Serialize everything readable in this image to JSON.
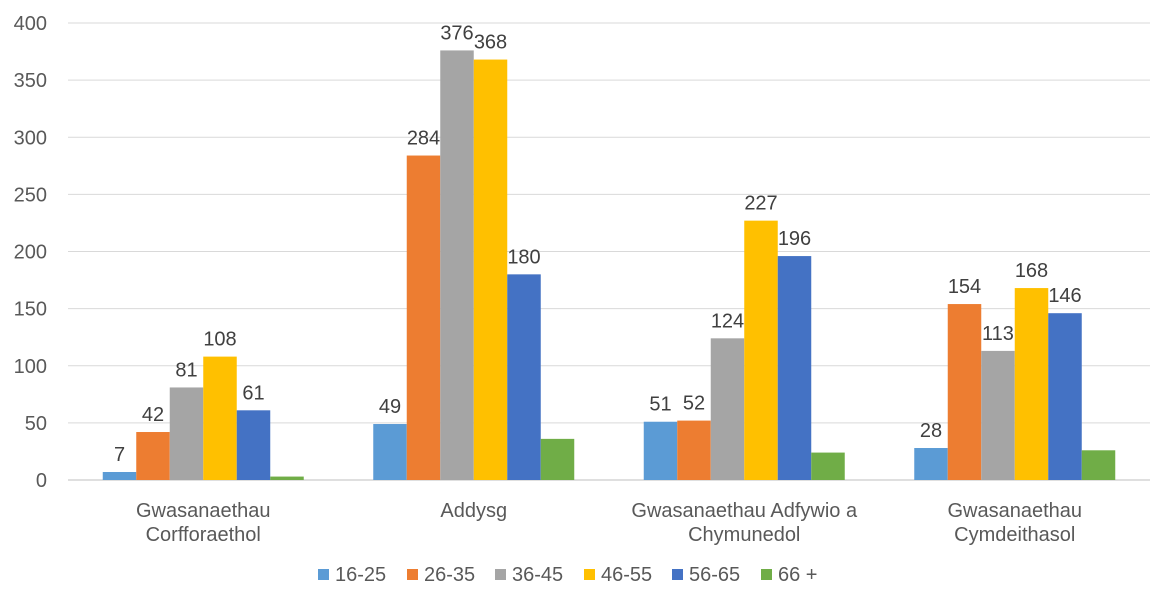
{
  "chart_data": {
    "type": "bar",
    "categories": [
      [
        "Gwasanaethau",
        "Corfforaethol"
      ],
      [
        "Addysg"
      ],
      [
        "Gwasanaethau Adfywio a",
        "Chymunedol"
      ],
      [
        "Gwasanaethau",
        "Cymdeithasol"
      ]
    ],
    "series": [
      {
        "name": "16-25",
        "color": "#5b9bd5",
        "values": [
          7,
          49,
          51,
          28
        ]
      },
      {
        "name": "26-35",
        "color": "#ed7d31",
        "values": [
          42,
          284,
          52,
          154
        ]
      },
      {
        "name": "36-45",
        "color": "#a5a5a5",
        "values": [
          81,
          376,
          124,
          113
        ]
      },
      {
        "name": "46-55",
        "color": "#ffc000",
        "values": [
          108,
          368,
          227,
          168
        ]
      },
      {
        "name": "56-65",
        "color": "#4472c4",
        "values": [
          61,
          180,
          196,
          146
        ]
      },
      {
        "name": "66 +",
        "color": "#70ad47",
        "values": [
          3,
          36,
          24,
          26
        ]
      }
    ],
    "data_labels_shown_for_series": [
      "16-25",
      "26-35",
      "36-45",
      "46-55",
      "56-65"
    ],
    "title": "",
    "xlabel": "",
    "ylabel": "",
    "ylim": [
      0,
      400
    ],
    "yticks": [
      0,
      50,
      100,
      150,
      200,
      250,
      300,
      350,
      400
    ],
    "grid": true,
    "legend_position": "bottom"
  }
}
